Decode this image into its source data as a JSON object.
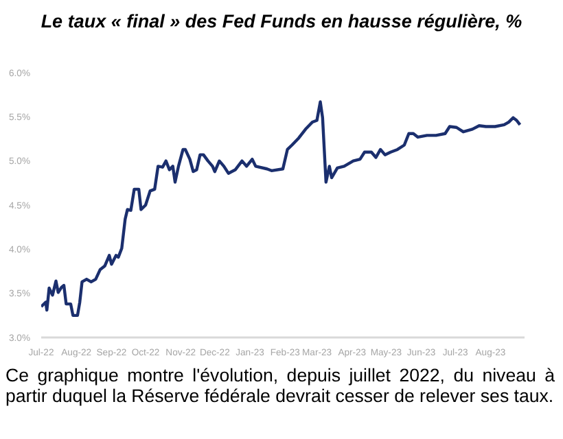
{
  "chart_data": {
    "type": "line",
    "title": "Le taux « final » des Fed Funds en hausse régulière, %",
    "annotations": [
      "Ce graphique montre l'évolution, depuis juillet 2022, du niveau à partir duquel la Réserve fédérale devrait cesser de relever ses taux."
    ],
    "x": [
      "2022-07-01",
      "2022-07-05",
      "2022-07-06",
      "2022-07-08",
      "2022-07-11",
      "2022-07-14",
      "2022-07-16",
      "2022-07-19",
      "2022-07-21",
      "2022-07-23",
      "2022-07-27",
      "2022-07-29",
      "2022-08-02",
      "2022-08-04",
      "2022-08-06",
      "2022-08-10",
      "2022-08-14",
      "2022-08-18",
      "2022-08-22",
      "2022-08-26",
      "2022-08-30",
      "2022-09-01",
      "2022-09-05",
      "2022-09-07",
      "2022-09-10",
      "2022-09-13",
      "2022-09-15",
      "2022-09-18",
      "2022-09-21",
      "2022-09-25",
      "2022-09-27",
      "2022-10-01",
      "2022-10-05",
      "2022-10-09",
      "2022-10-12",
      "2022-10-16",
      "2022-10-19",
      "2022-10-22",
      "2022-10-25",
      "2022-10-27",
      "2022-10-30",
      "2022-11-03",
      "2022-11-05",
      "2022-11-09",
      "2022-11-12",
      "2022-11-15",
      "2022-11-18",
      "2022-11-21",
      "2022-11-25",
      "2022-11-29",
      "2022-12-01",
      "2022-12-05",
      "2022-12-09",
      "2022-12-13",
      "2022-12-19",
      "2022-12-25",
      "2022-12-29",
      "2023-01-03",
      "2023-01-06",
      "2023-01-16",
      "2023-01-20",
      "2023-01-30",
      "2023-02-03",
      "2023-02-07",
      "2023-02-13",
      "2023-02-19",
      "2023-02-25",
      "2023-03-01",
      "2023-03-04",
      "2023-03-06",
      "2023-03-09",
      "2023-03-12",
      "2023-03-14",
      "2023-03-19",
      "2023-03-25",
      "2023-04-02",
      "2023-04-08",
      "2023-04-12",
      "2023-04-18",
      "2023-04-22",
      "2023-04-26",
      "2023-04-30",
      "2023-05-05",
      "2023-05-11",
      "2023-05-17",
      "2023-05-21",
      "2023-05-25",
      "2023-05-29",
      "2023-06-06",
      "2023-06-14",
      "2023-06-22",
      "2023-06-26",
      "2023-07-02",
      "2023-07-08",
      "2023-07-16",
      "2023-07-22",
      "2023-07-28",
      "2023-08-05",
      "2023-08-13",
      "2023-08-17",
      "2023-08-21",
      "2023-08-24",
      "2023-08-27"
    ],
    "series": [
      {
        "color": "#1b2f6e",
        "values": [
          3.35,
          3.4,
          3.31,
          3.56,
          3.48,
          3.64,
          3.51,
          3.57,
          3.59,
          3.38,
          3.38,
          3.25,
          3.25,
          3.4,
          3.63,
          3.66,
          3.63,
          3.66,
          3.77,
          3.81,
          3.93,
          3.83,
          3.93,
          3.91,
          4.01,
          4.34,
          4.45,
          4.44,
          4.68,
          4.68,
          4.45,
          4.5,
          4.66,
          4.68,
          4.94,
          4.93,
          5.0,
          4.9,
          4.94,
          4.76,
          4.94,
          5.13,
          5.13,
          5.02,
          4.88,
          4.9,
          5.07,
          5.07,
          5.0,
          4.94,
          4.88,
          5.0,
          4.94,
          4.86,
          4.9,
          5.0,
          4.94,
          5.02,
          4.94,
          4.91,
          4.89,
          4.91,
          5.13,
          5.18,
          5.26,
          5.36,
          5.44,
          5.46,
          5.67,
          5.49,
          4.76,
          4.94,
          4.81,
          4.92,
          4.94,
          5.0,
          5.02,
          5.1,
          5.1,
          5.04,
          5.13,
          5.07,
          5.1,
          5.13,
          5.18,
          5.31,
          5.31,
          5.27,
          5.29,
          5.29,
          5.31,
          5.39,
          5.38,
          5.33,
          5.36,
          5.4,
          5.39,
          5.39,
          5.41,
          5.44,
          5.49,
          5.46,
          5.41
        ]
      }
    ],
    "xlim": [
      "2022-07-01",
      "2023-08-31"
    ],
    "xticks": [
      {
        "value": "2022-07-01",
        "label": "Jul-22"
      },
      {
        "value": "2022-08-01",
        "label": "Aug-22"
      },
      {
        "value": "2022-09-01",
        "label": "Sep-22"
      },
      {
        "value": "2022-10-01",
        "label": "Oct-22"
      },
      {
        "value": "2022-11-01",
        "label": "Nov-22"
      },
      {
        "value": "2022-12-01",
        "label": "Dec-22"
      },
      {
        "value": "2023-01-01",
        "label": "Jan-23"
      },
      {
        "value": "2023-02-01",
        "label": "Feb-23"
      },
      {
        "value": "2023-03-01",
        "label": "Mar-23"
      },
      {
        "value": "2023-04-01",
        "label": "Apr-23"
      },
      {
        "value": "2023-05-01",
        "label": "May-23"
      },
      {
        "value": "2023-06-01",
        "label": "Jun-23"
      },
      {
        "value": "2023-07-01",
        "label": "Jul-23"
      },
      {
        "value": "2023-08-01",
        "label": "Aug-23"
      }
    ],
    "ylim": [
      3.0,
      6.0
    ],
    "yticks": [
      {
        "value": 3.0,
        "label": "3.0%"
      },
      {
        "value": 3.5,
        "label": "3.5%"
      },
      {
        "value": 4.0,
        "label": "4.0%"
      },
      {
        "value": 4.5,
        "label": "4.5%"
      },
      {
        "value": 5.0,
        "label": "5.0%"
      },
      {
        "value": 5.5,
        "label": "5.5%"
      },
      {
        "value": 6.0,
        "label": "6.0%"
      }
    ],
    "grid": false,
    "legend": false,
    "marker": "none",
    "line_style": "solid"
  }
}
